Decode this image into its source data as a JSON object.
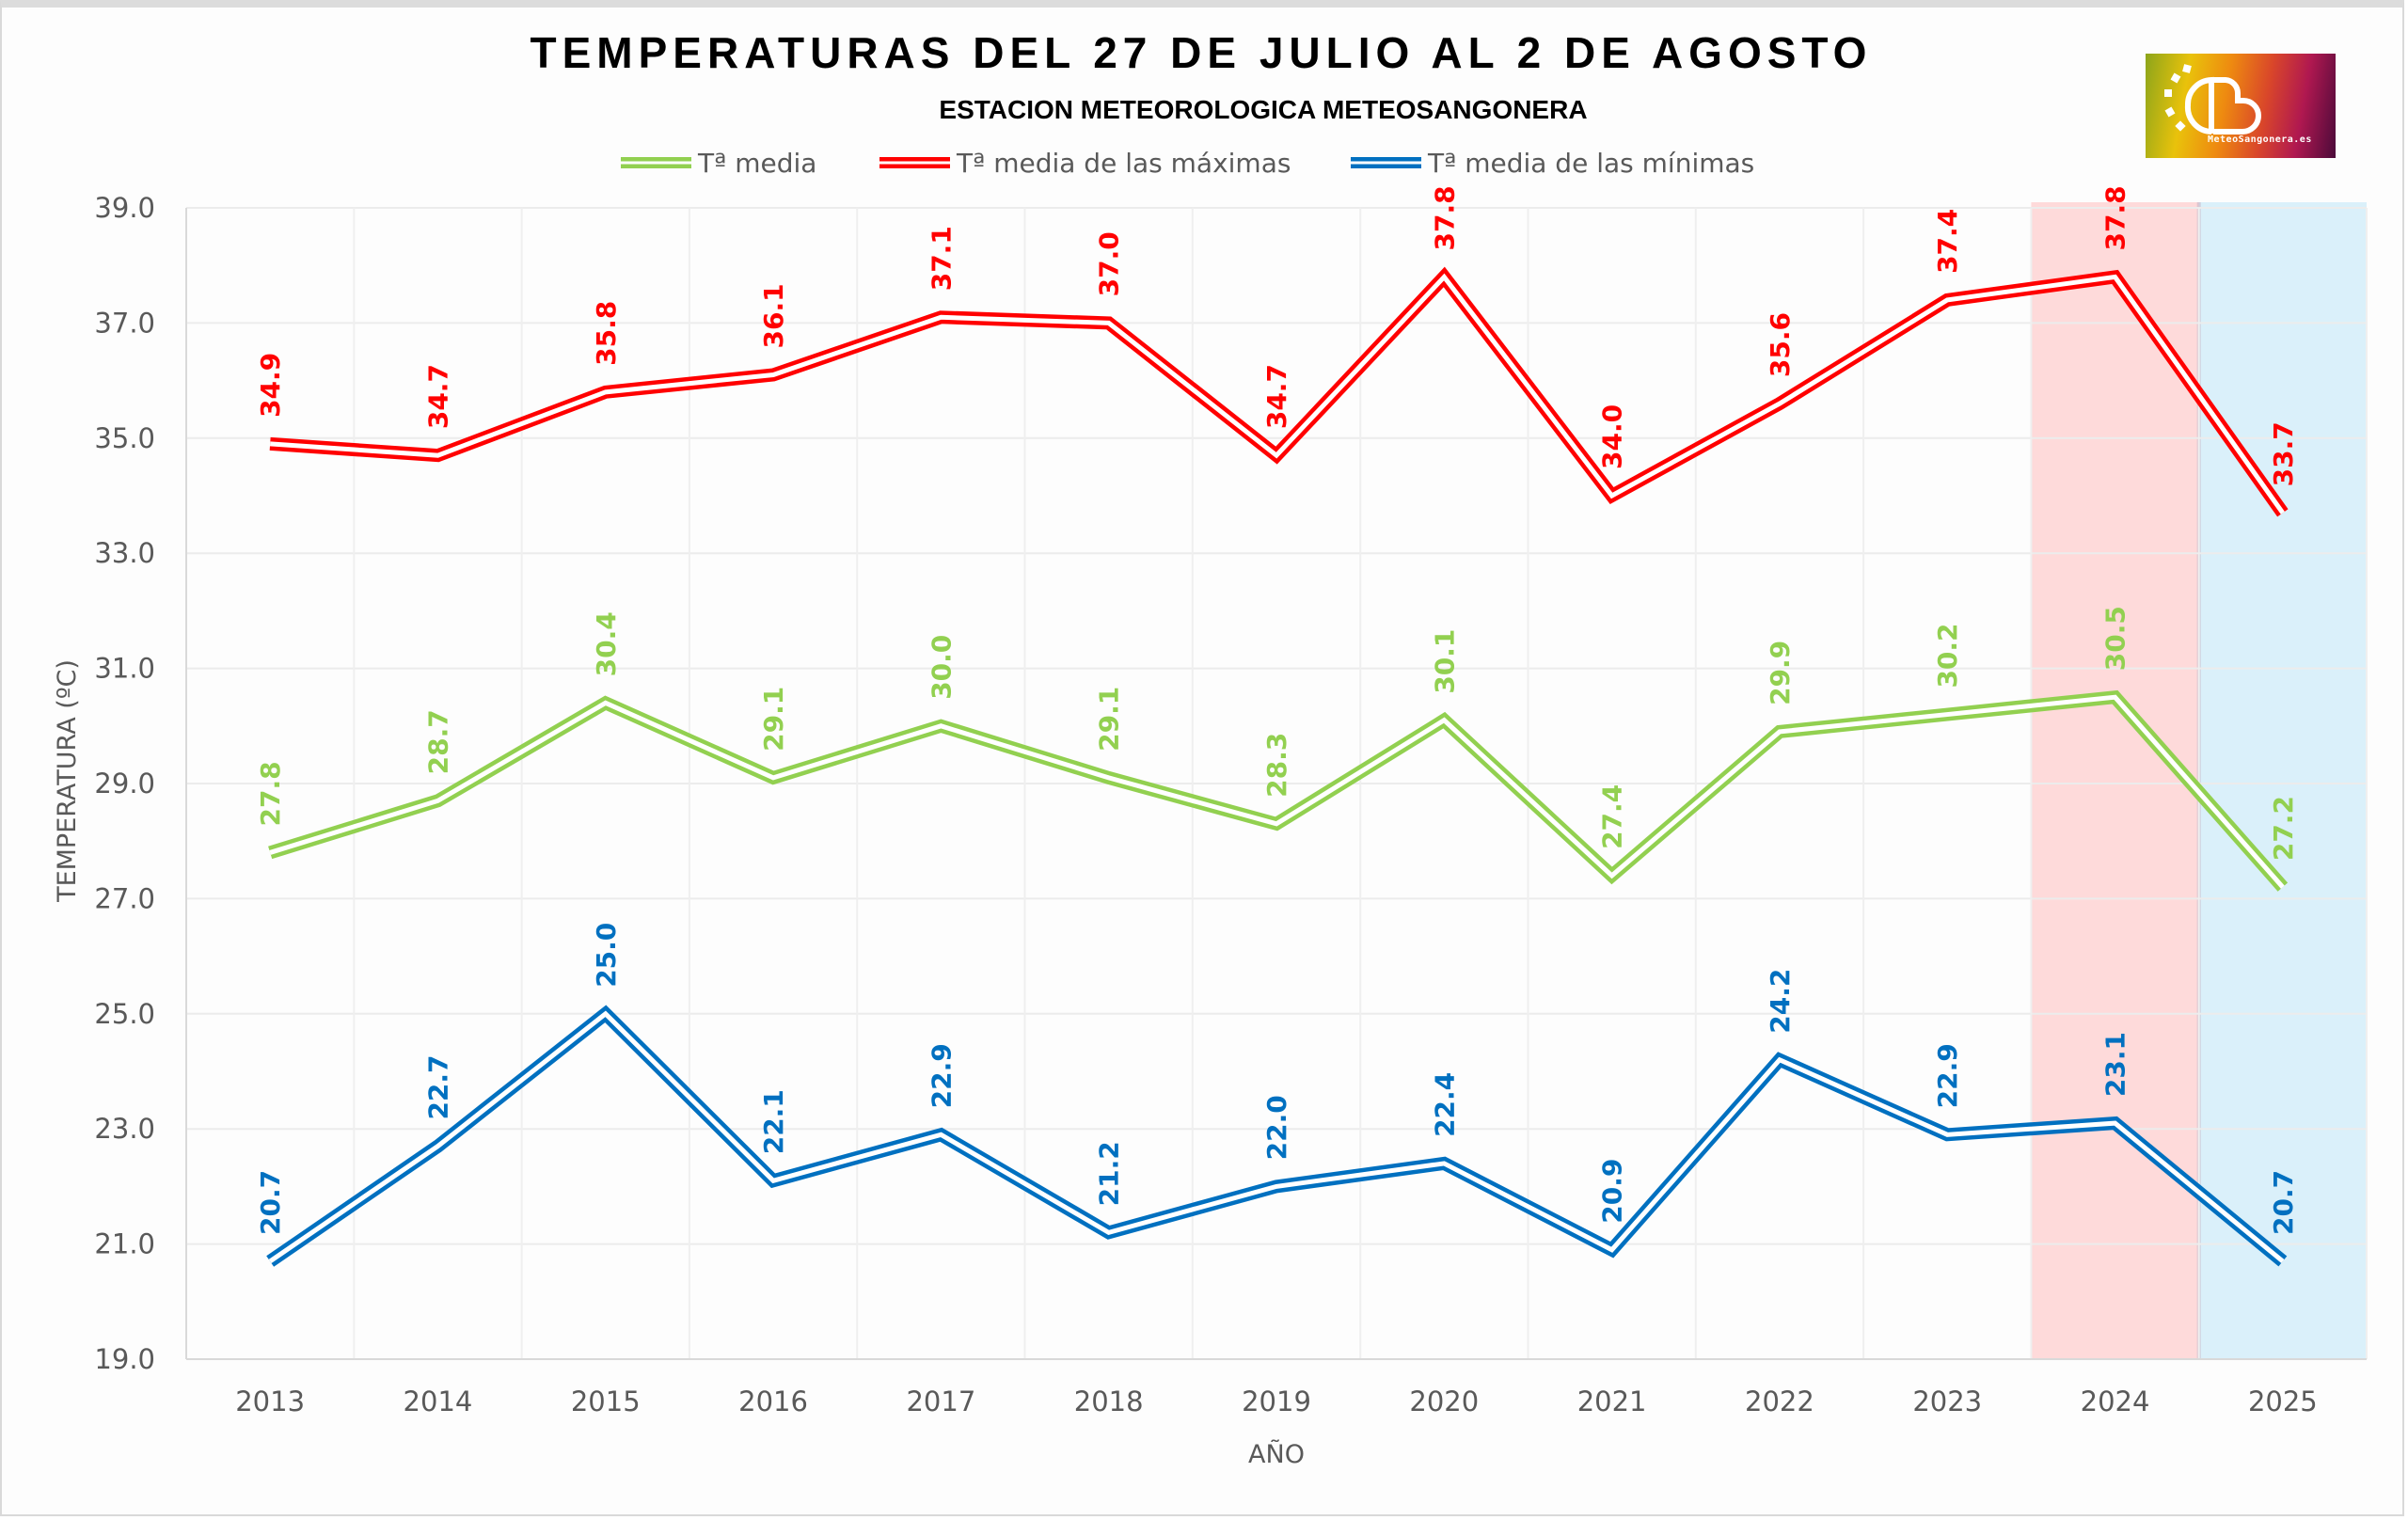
{
  "chart_data": {
    "type": "line",
    "title": "TEMPERATURAS DEL 27 DE JULIO AL 2 DE AGOSTO",
    "subtitle": "ESTACION METEOROLOGICA METEOSANGONERA",
    "xlabel": "AÑO",
    "ylabel": "TEMPERATURA (ºC)",
    "ylim": [
      19.0,
      39.0
    ],
    "yticks": [
      "39.0",
      "37.0",
      "35.0",
      "33.0",
      "31.0",
      "29.0",
      "27.0",
      "25.0",
      "23.0",
      "21.0",
      "19.0"
    ],
    "ytick_values": [
      39,
      37,
      35,
      33,
      31,
      29,
      27,
      25,
      23,
      21,
      19
    ],
    "categories": [
      "2013",
      "2014",
      "2015",
      "2016",
      "2017",
      "2018",
      "2019",
      "2020",
      "2021",
      "2022",
      "2023",
      "2024",
      "2025"
    ],
    "grid": true,
    "legend_position": "top",
    "series": [
      {
        "name": "Tª media",
        "color": "#92d050",
        "values": [
          27.8,
          28.7,
          30.4,
          29.1,
          30.0,
          29.1,
          28.3,
          30.1,
          27.4,
          29.9,
          30.2,
          30.5,
          27.2
        ]
      },
      {
        "name": "Tª media de las máximas",
        "color": "#ff0000",
        "values": [
          34.9,
          34.7,
          35.8,
          36.1,
          37.1,
          37.0,
          34.7,
          37.8,
          34.0,
          35.6,
          37.4,
          37.8,
          33.7
        ]
      },
      {
        "name": "Tª media de las mínimas",
        "color": "#0070c0",
        "values": [
          20.7,
          22.7,
          25.0,
          22.1,
          22.9,
          21.2,
          22.0,
          22.4,
          20.9,
          24.2,
          22.9,
          23.1,
          20.7
        ]
      }
    ],
    "highlight_bands": [
      {
        "category": "2024",
        "color": "#ff9999",
        "opacity": 0.35
      },
      {
        "category": "2025",
        "color": "#a6dcf5",
        "opacity": 0.4
      }
    ]
  },
  "logo": {
    "text": "MeteoSangonera.es"
  }
}
